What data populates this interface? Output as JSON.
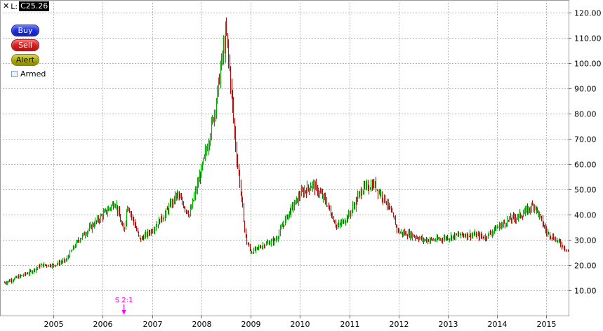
{
  "header": {
    "close_glyph": "✕",
    "last_label": "L:",
    "last_value": "C25.26"
  },
  "buttons": {
    "buy": "Buy",
    "sell": "Sell",
    "alert": "Alert"
  },
  "armed": {
    "label": "Armed",
    "checked": false
  },
  "colors": {
    "up": "#00aa00",
    "down": "#b01010",
    "grid": "#b8b8b8",
    "split_marker": "#ff00ff"
  },
  "chart_data": {
    "type": "bar",
    "x_tick_labels": [
      "2005",
      "2006",
      "2007",
      "2008",
      "2009",
      "2010",
      "2011",
      "2012",
      "2013",
      "2014",
      "2015"
    ],
    "y_tick_labels": [
      "10.00",
      "20.00",
      "30.00",
      "40.00",
      "50.00",
      "60.00",
      "70.00",
      "80.00",
      "90.00",
      "100.00",
      "110.00",
      "120.00"
    ],
    "y_ticks": [
      10,
      20,
      30,
      40,
      50,
      60,
      70,
      80,
      90,
      100,
      110,
      120
    ],
    "ylim": [
      0,
      125
    ],
    "xlim": [
      2004.0,
      2015.45
    ],
    "grid": true,
    "y_axis_position": "right",
    "last_close": 25.26,
    "annotation": {
      "label": "S 2:1",
      "x": 2006.42
    },
    "series": [
      {
        "x": [
          2004.0,
          2004.25,
          2004.5,
          2004.75,
          2005.0,
          2005.25,
          2005.5,
          2005.75,
          2006.0,
          2006.25,
          2006.42,
          2006.5,
          2006.75,
          2007.0,
          2007.25,
          2007.5,
          2007.75,
          2008.0,
          2008.15,
          2008.3,
          2008.4,
          2008.5,
          2008.6,
          2008.7,
          2008.8,
          2008.9,
          2009.0,
          2009.25,
          2009.5,
          2009.75,
          2010.0,
          2010.25,
          2010.5,
          2010.75,
          2011.0,
          2011.25,
          2011.5,
          2011.75,
          2012.0,
          2012.25,
          2012.5,
          2012.75,
          2013.0,
          2013.25,
          2013.5,
          2013.75,
          2014.0,
          2014.25,
          2014.5,
          2014.75,
          2015.0,
          2015.2,
          2015.45
        ],
        "y": [
          13,
          15,
          17,
          20,
          20,
          22,
          30,
          35,
          40,
          45,
          33,
          44,
          30,
          34,
          40,
          48,
          40,
          58,
          70,
          85,
          100,
          112,
          90,
          65,
          48,
          30,
          25,
          28,
          30,
          40,
          48,
          52,
          46,
          35,
          40,
          50,
          52,
          45,
          33,
          32,
          30,
          30,
          31,
          32,
          32,
          31,
          35,
          38,
          40,
          44,
          33,
          30,
          25.26
        ]
      }
    ]
  }
}
